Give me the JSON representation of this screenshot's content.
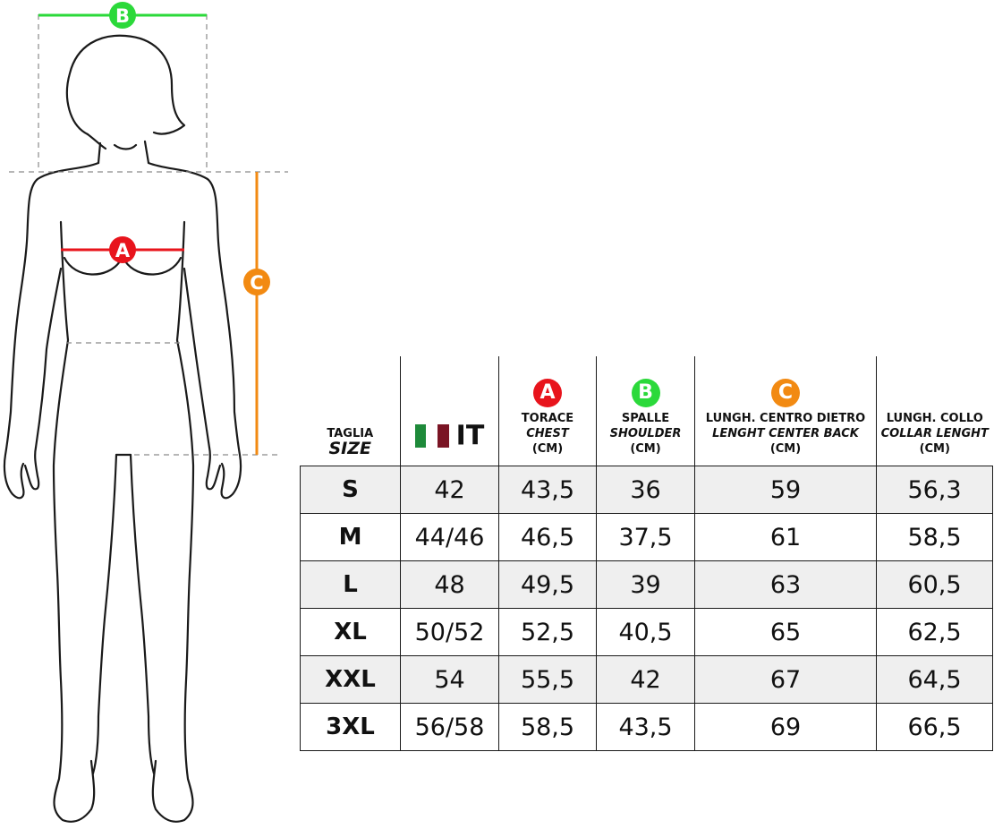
{
  "markers": {
    "a": {
      "letter": "A",
      "color": "#e8141c"
    },
    "b": {
      "letter": "B",
      "color": "#2bd93a"
    },
    "c": {
      "letter": "C",
      "color": "#f28a12"
    }
  },
  "flag_colors": [
    "#1e8a3a",
    "#ffffff",
    "#7a1424"
  ],
  "table": {
    "headers": {
      "size": {
        "it": "TAGLIA",
        "en": "SIZE"
      },
      "it": {
        "label": "IT"
      },
      "chest": {
        "it": "TORACE",
        "en": "CHEST",
        "unit": "(CM)"
      },
      "shoulder": {
        "it": "SPALLE",
        "en": "SHOULDER",
        "unit": "(CM)"
      },
      "back": {
        "it": "LUNGH. CENTRO DIETRO",
        "en": "LENGHT CENTER BACK",
        "unit": "(CM)"
      },
      "collar": {
        "it": "LUNGH. COLLO",
        "en": "COLLAR LENGHT",
        "unit": "(CM)"
      }
    },
    "rows": [
      {
        "size": "S",
        "it": "42",
        "chest": "43,5",
        "shoulder": "36",
        "back": "59",
        "collar": "56,3"
      },
      {
        "size": "M",
        "it": "44/46",
        "chest": "46,5",
        "shoulder": "37,5",
        "back": "61",
        "collar": "58,5"
      },
      {
        "size": "L",
        "it": "48",
        "chest": "49,5",
        "shoulder": "39",
        "back": "63",
        "collar": "60,5"
      },
      {
        "size": "XL",
        "it": "50/52",
        "chest": "52,5",
        "shoulder": "40,5",
        "back": "65",
        "collar": "62,5"
      },
      {
        "size": "XXL",
        "it": "54",
        "chest": "55,5",
        "shoulder": "42",
        "back": "67",
        "collar": "64,5"
      },
      {
        "size": "3XL",
        "it": "56/58",
        "chest": "58,5",
        "shoulder": "43,5",
        "back": "69",
        "collar": "66,5"
      }
    ]
  }
}
